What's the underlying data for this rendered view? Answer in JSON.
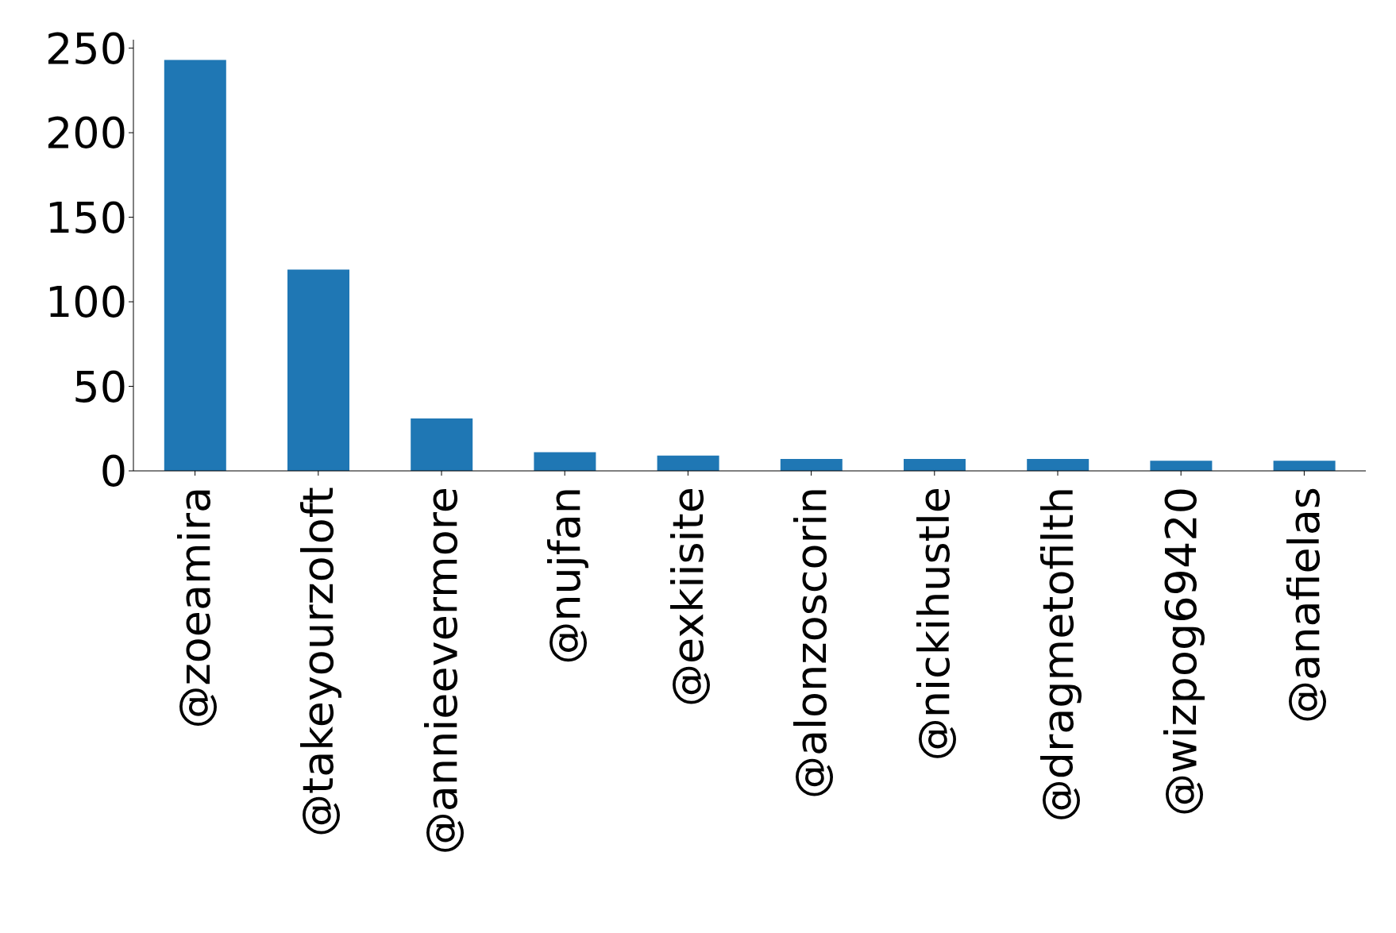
{
  "chart_data": {
    "type": "bar",
    "categories": [
      "@zoeamira",
      "@takeyourzoloft",
      "@annieevermore",
      "@nujfan",
      "@exkiisite",
      "@alonzoscorin",
      "@nickihustle",
      "@dragmetofilth",
      "@wizpog69420",
      "@anafielas"
    ],
    "values": [
      243,
      119,
      31,
      11,
      9,
      7,
      7,
      7,
      6,
      6
    ],
    "color": "#1f77b4",
    "ylim": [
      0,
      255
    ],
    "yticks": [
      0,
      50,
      100,
      150,
      200,
      250
    ],
    "grid": false,
    "legend": false
  }
}
